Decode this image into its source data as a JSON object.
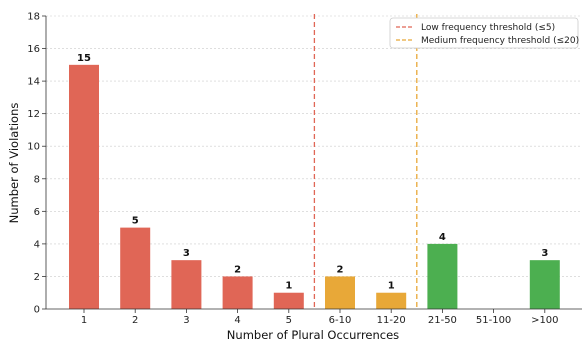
{
  "chart_data": {
    "type": "bar",
    "categories": [
      "1",
      "2",
      "3",
      "4",
      "5",
      "6-10",
      "11-20",
      "21-50",
      "51-100",
      ">100"
    ],
    "values": [
      15,
      5,
      3,
      2,
      1,
      2,
      1,
      4,
      0,
      3
    ],
    "bar_colors": [
      "#e06656",
      "#e06656",
      "#e06656",
      "#e06656",
      "#e06656",
      "#e8a838",
      "#e8a838",
      "#4caf50",
      "#4caf50",
      "#4caf50"
    ],
    "data_labels": [
      "15",
      "5",
      "3",
      "2",
      "1",
      "2",
      "1",
      "4",
      "",
      "3"
    ],
    "xlabel": "Number of Plural Occurrences",
    "ylabel": "Number of Violations",
    "ylim": [
      0,
      18
    ],
    "yticks": [
      0,
      2,
      4,
      6,
      8,
      10,
      12,
      14,
      16,
      18
    ],
    "grid": "horizontal dashed",
    "thresholds": [
      {
        "name": "Low frequency threshold (≤5)",
        "after_category": "5",
        "color": "#e06656"
      },
      {
        "name": "Medium frequency threshold (≤20)",
        "after_category": "11-20",
        "color": "#e8a838"
      }
    ],
    "legend_position": "top-right"
  }
}
